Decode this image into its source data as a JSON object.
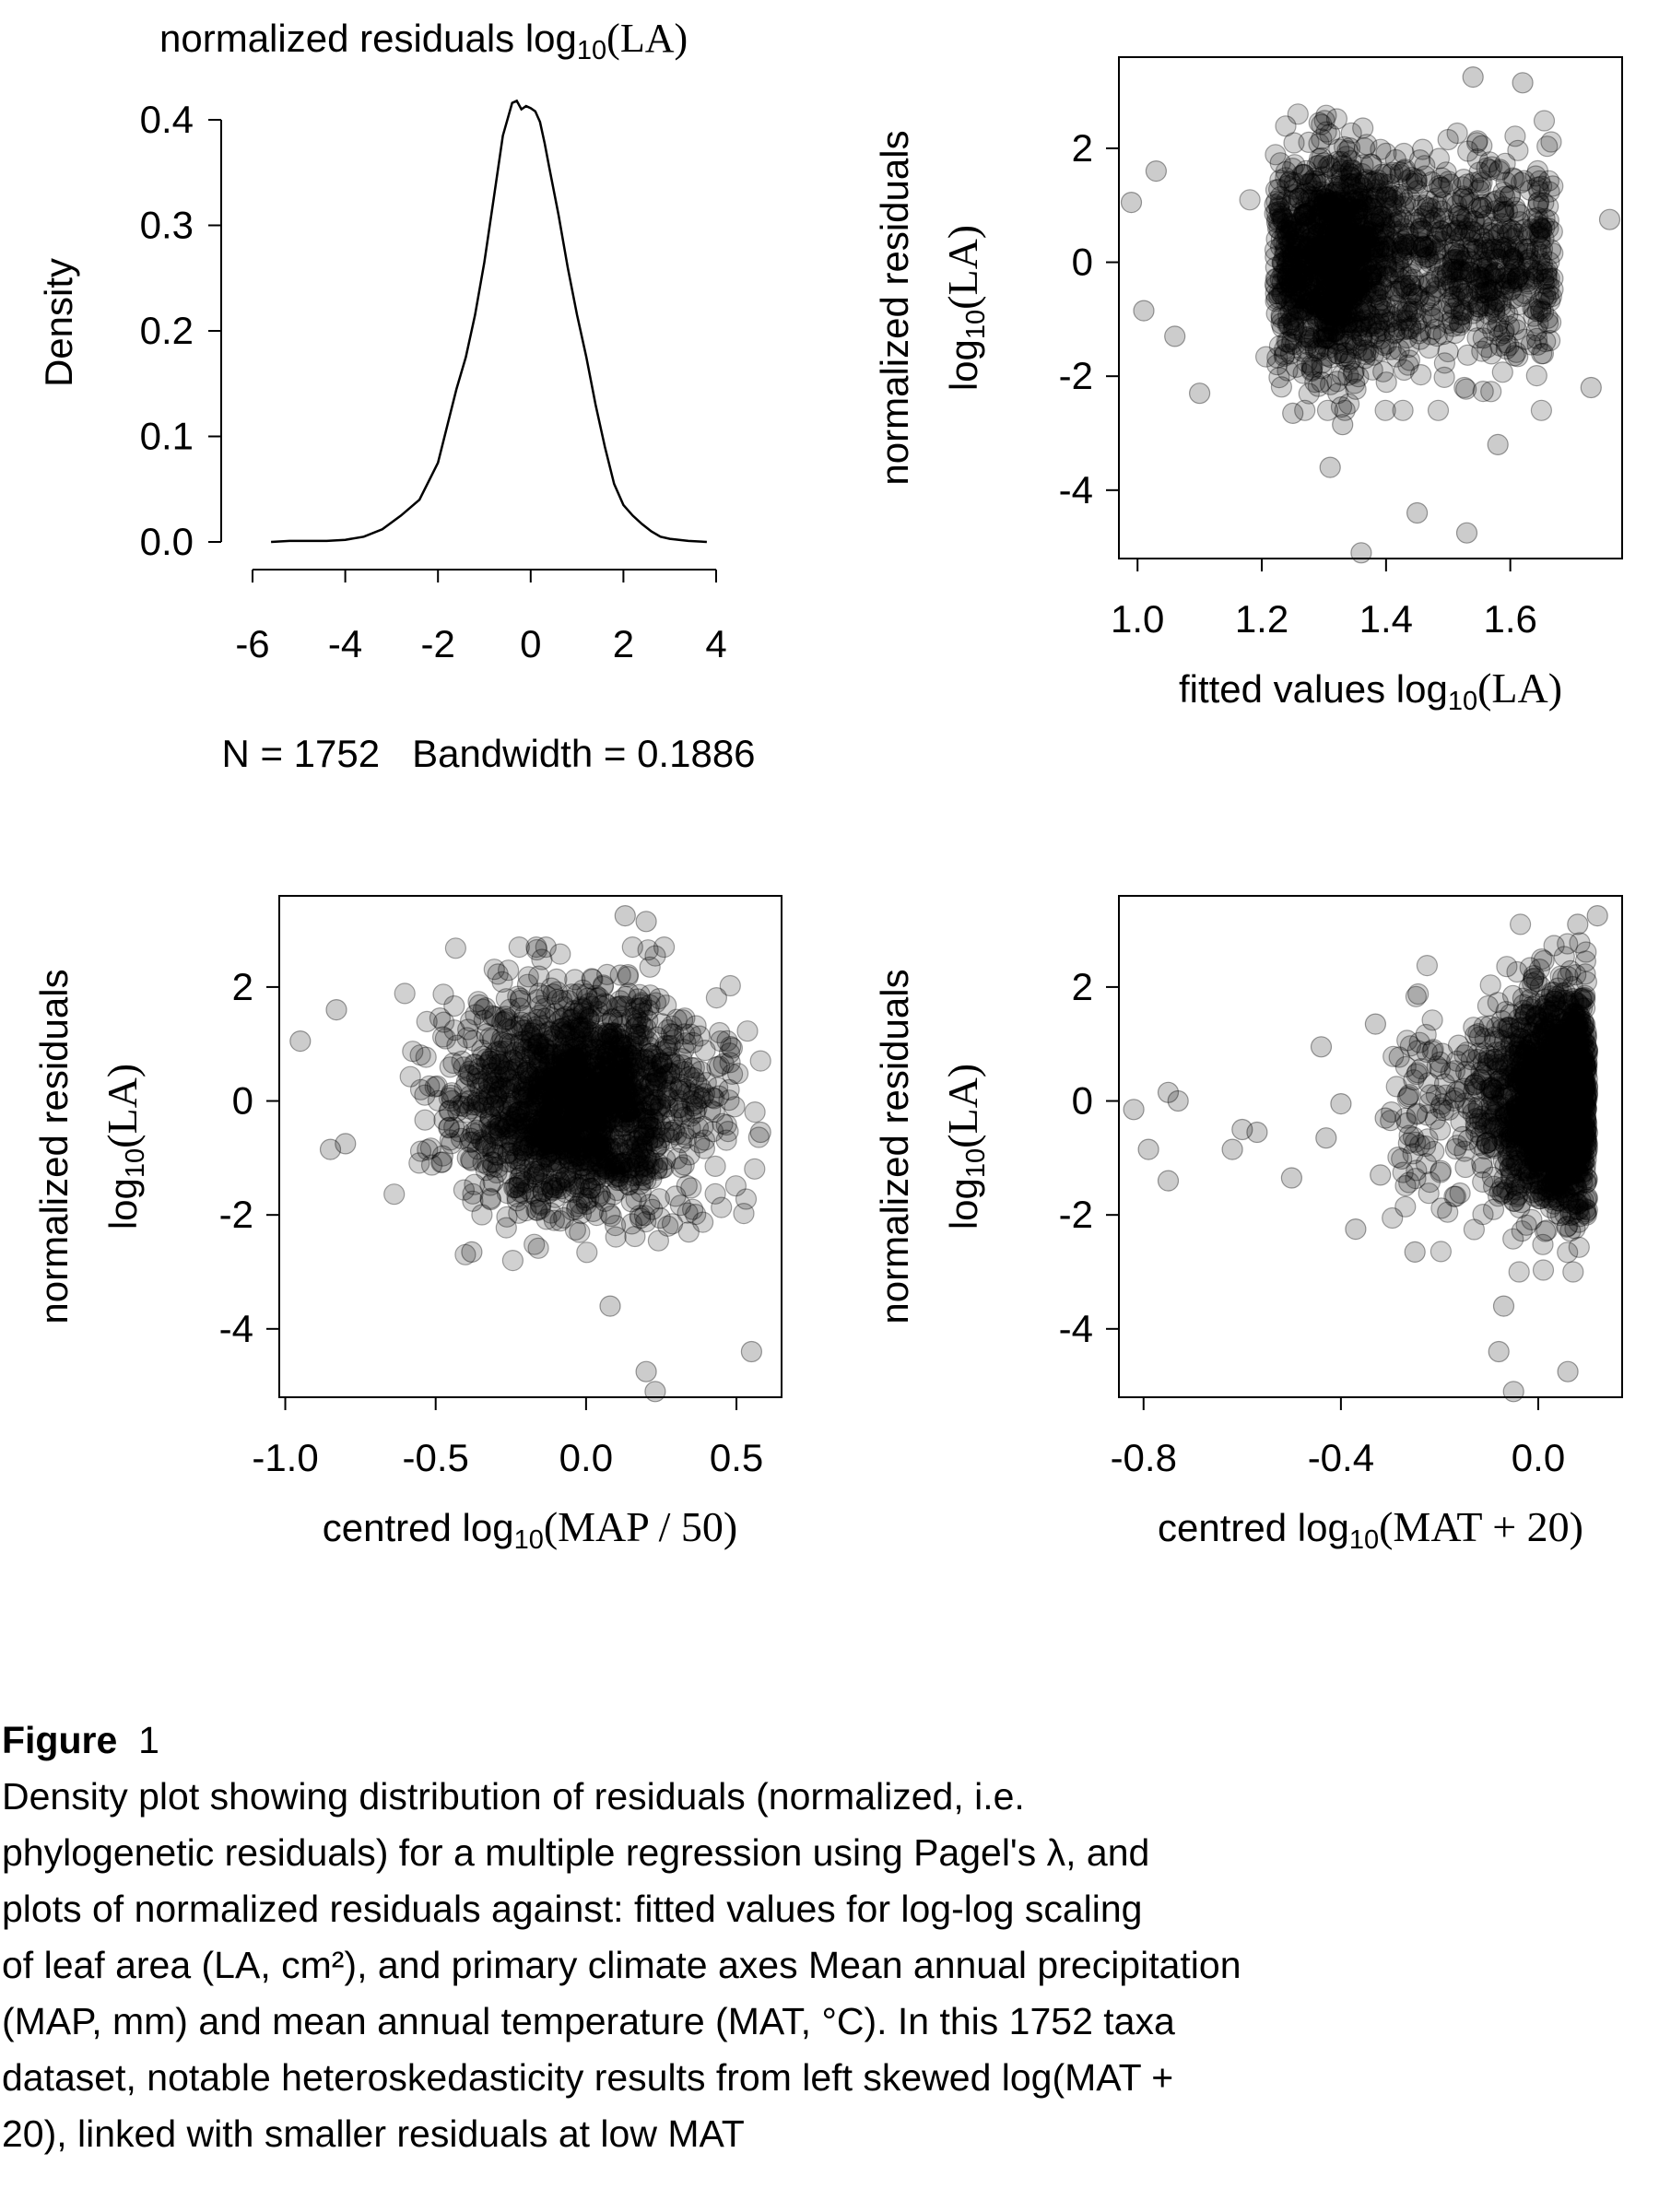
{
  "chart_data": [
    {
      "type": "line",
      "title_main": "normalized residuals log",
      "title_sub": "10",
      "title_suffix": "(LA)",
      "ylabel": "Density",
      "xlabel": "N = 1752   Bandwidth = 0.1886",
      "xlim": [
        -6,
        4
      ],
      "ylim": [
        0,
        0.42
      ],
      "x_ticks": [
        -6,
        -4,
        -2,
        0,
        2,
        4
      ],
      "y_ticks": [
        0.0,
        0.1,
        0.2,
        0.3,
        0.4
      ],
      "x_tick_labels": [
        "-6",
        "-4",
        "-2",
        "0",
        "2",
        "4"
      ],
      "y_tick_labels": [
        "0.0",
        "0.1",
        "0.2",
        "0.3",
        "0.4"
      ],
      "series": [
        {
          "x": [
            -5.6,
            -5.2,
            -4.8,
            -4.4,
            -4.0,
            -3.6,
            -3.2,
            -2.8,
            -2.4,
            -2.0,
            -1.6,
            -1.4,
            -1.2,
            -1.0,
            -0.8,
            -0.6,
            -0.4,
            -0.3,
            -0.2,
            -0.1,
            0.0,
            0.1,
            0.2,
            0.3,
            0.4,
            0.6,
            0.8,
            1.0,
            1.2,
            1.4,
            1.6,
            1.8,
            2.0,
            2.2,
            2.4,
            2.6,
            2.8,
            3.0,
            3.4,
            3.8
          ],
          "y": [
            0.0,
            0.001,
            0.001,
            0.001,
            0.002,
            0.005,
            0.012,
            0.025,
            0.04,
            0.075,
            0.145,
            0.175,
            0.215,
            0.265,
            0.325,
            0.385,
            0.416,
            0.418,
            0.41,
            0.413,
            0.411,
            0.408,
            0.398,
            0.378,
            0.355,
            0.31,
            0.26,
            0.215,
            0.175,
            0.13,
            0.09,
            0.055,
            0.035,
            0.025,
            0.017,
            0.01,
            0.005,
            0.003,
            0.001,
            0.0
          ]
        }
      ]
    },
    {
      "type": "scatter",
      "xlabel_main": "fitted values log",
      "xlabel_sub": "10",
      "xlabel_suffix": "(LA)",
      "ylabel_line1": "normalized residuals",
      "ylabel_line2_main": "log",
      "ylabel_line2_sub": "10",
      "ylabel_line2_suffix": "(LA)",
      "xlim": [
        0.97,
        1.78
      ],
      "ylim": [
        -5.2,
        3.6
      ],
      "x_ticks": [
        1.0,
        1.2,
        1.4,
        1.6
      ],
      "y_ticks": [
        -4,
        -2,
        0,
        2
      ],
      "x_tick_labels": [
        "1.0",
        "1.2",
        "1.4",
        "1.6"
      ],
      "y_tick_labels": [
        "-4",
        "-2",
        "0",
        "2"
      ],
      "points_note": "1752 normalized residuals",
      "outliers": [
        [
          0.99,
          1.05
        ],
        [
          1.03,
          1.6
        ],
        [
          1.01,
          -0.85
        ],
        [
          1.06,
          -1.3
        ],
        [
          1.1,
          -2.3
        ],
        [
          1.31,
          -3.6
        ],
        [
          1.36,
          -5.1
        ],
        [
          1.45,
          -4.4
        ],
        [
          1.53,
          -4.75
        ],
        [
          1.54,
          3.25
        ],
        [
          1.62,
          3.15
        ],
        [
          1.76,
          0.75
        ],
        [
          1.73,
          -2.2
        ],
        [
          1.58,
          -3.2
        ],
        [
          1.25,
          -2.65
        ],
        [
          1.33,
          -2.85
        ]
      ]
    },
    {
      "type": "scatter",
      "xlabel_main": "centred log",
      "xlabel_sub": "10",
      "xlabel_suffix": "(MAP / 50)",
      "ylabel_line1": "normalized residuals",
      "ylabel_line2_main": "log",
      "ylabel_line2_sub": "10",
      "ylabel_line2_suffix": "(LA)",
      "xlim": [
        -1.02,
        0.65
      ],
      "ylim": [
        -5.2,
        3.6
      ],
      "x_ticks": [
        -1.0,
        -0.5,
        0.0,
        0.5
      ],
      "y_ticks": [
        -4,
        -2,
        0,
        2
      ],
      "x_tick_labels": [
        "-1.0",
        "-0.5",
        "0.0",
        "0.5"
      ],
      "y_tick_labels": [
        "-4",
        "-2",
        "0",
        "2"
      ],
      "points_note": "1752 normalized residuals",
      "outliers": [
        [
          -0.95,
          1.05
        ],
        [
          -0.83,
          1.6
        ],
        [
          -0.8,
          -0.75
        ],
        [
          -0.85,
          -0.85
        ],
        [
          -0.38,
          -2.65
        ],
        [
          0.13,
          3.25
        ],
        [
          0.2,
          3.15
        ],
        [
          0.55,
          -4.4
        ],
        [
          0.2,
          -4.75
        ],
        [
          0.23,
          -5.1
        ],
        [
          0.08,
          -3.6
        ],
        [
          0.58,
          -0.55
        ]
      ]
    },
    {
      "type": "scatter",
      "xlabel_main": "centred log",
      "xlabel_sub": "10",
      "xlabel_suffix": "(MAT + 20)",
      "ylabel_line1": "normalized residuals",
      "ylabel_line2_main": "log",
      "ylabel_line2_sub": "10",
      "ylabel_line2_suffix": "(LA)",
      "xlim": [
        -0.85,
        0.17
      ],
      "ylim": [
        -5.2,
        3.6
      ],
      "x_ticks": [
        -0.8,
        -0.4,
        0.0
      ],
      "y_ticks": [
        -4,
        -2,
        0,
        2
      ],
      "x_tick_labels": [
        "-0.8",
        "-0.4",
        "0.0"
      ],
      "y_tick_labels": [
        "-4",
        "-2",
        "0",
        "2"
      ],
      "points_note": "1752 normalized residuals",
      "outliers": [
        [
          -0.82,
          -0.15
        ],
        [
          -0.79,
          -0.85
        ],
        [
          -0.75,
          0.15
        ],
        [
          -0.73,
          0.0
        ],
        [
          -0.75,
          -1.4
        ],
        [
          -0.62,
          -0.85
        ],
        [
          -0.6,
          -0.5
        ],
        [
          -0.57,
          -0.55
        ],
        [
          -0.5,
          -1.35
        ],
        [
          -0.44,
          0.95
        ],
        [
          -0.43,
          -0.65
        ],
        [
          -0.4,
          -0.05
        ],
        [
          -0.37,
          -2.25
        ],
        [
          -0.33,
          1.35
        ],
        [
          -0.32,
          -1.3
        ],
        [
          -0.31,
          -0.3
        ],
        [
          -0.25,
          -2.65
        ],
        [
          -0.07,
          -3.6
        ],
        [
          -0.08,
          -4.4
        ],
        [
          -0.05,
          -5.1
        ],
        [
          0.06,
          -4.75
        ],
        [
          0.08,
          3.1
        ],
        [
          0.12,
          3.25
        ]
      ]
    }
  ],
  "caption": {
    "label": "Figure",
    "number": "1",
    "lines": [
      "Density plot showing distribution of residuals (normalized, i.e.",
      "phylogenetic residuals) for a multiple regression using Pagel's λ, and",
      "plots of normalized residuals against: fitted values for log-log scaling",
      "of leaf area (LA, cm²), and primary climate axes Mean annual precipitation",
      "(MAP, mm) and mean annual temperature (MAT, °C). In this 1752 taxa",
      "dataset, notable heteroskedasticity results from left skewed log(MAT +",
      "20), linked with smaller residuals at low MAT"
    ]
  }
}
